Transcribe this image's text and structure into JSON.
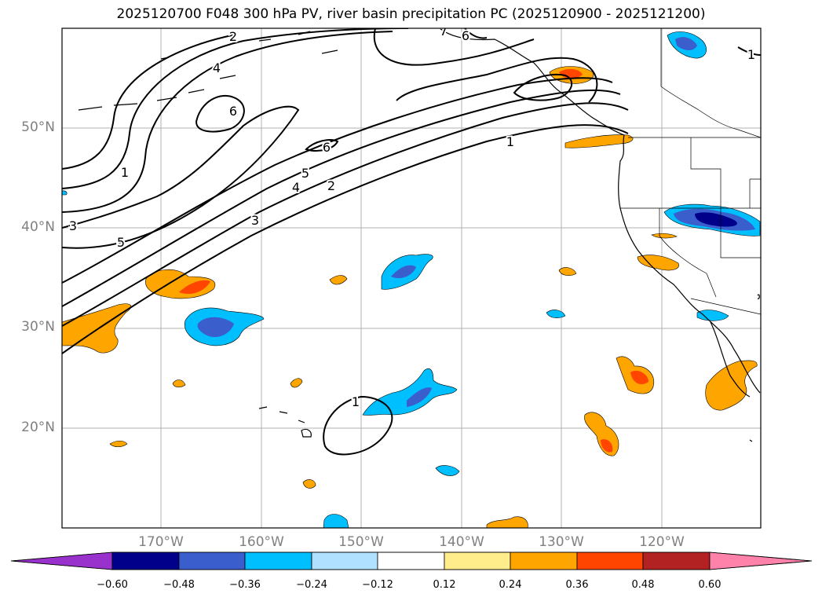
{
  "title": "2025120700 F048 300 hPa PV, river basin precipitation PC (2025120900 - 2025121200)",
  "lat_labels": [
    "50°N",
    "40°N",
    "30°N",
    "20°N"
  ],
  "lon_labels": [
    "170°W",
    "160°W",
    "150°W",
    "140°W",
    "130°W",
    "120°W"
  ],
  "contour_labels": [
    "2",
    "4",
    "6",
    "6",
    "7",
    "6",
    "1",
    "5",
    "4",
    "2",
    "3",
    "1",
    "3",
    "5",
    "1",
    "1"
  ],
  "colorbar": {
    "ticks": [
      "−0.60",
      "−0.48",
      "−0.36",
      "−0.24",
      "−0.12",
      "0.12",
      "0.24",
      "0.36",
      "0.48",
      "0.60"
    ],
    "colors": [
      "#9932cc",
      "#00008b",
      "#3a5fcd",
      "#00bfff",
      "#b0e2ff",
      "#ffffff",
      "#ffec8b",
      "#ffa500",
      "#ff4500",
      "#b22222",
      "#ff82ab"
    ]
  }
}
